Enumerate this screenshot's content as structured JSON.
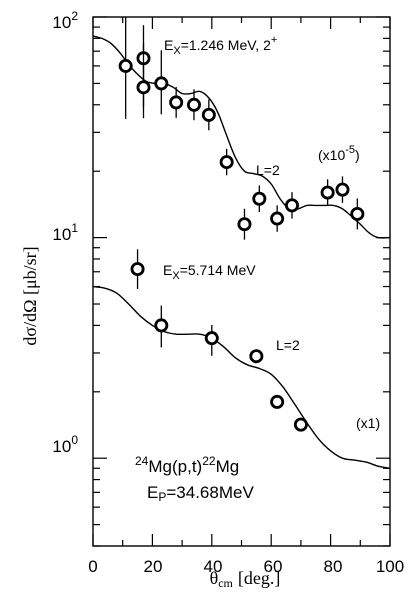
{
  "chart_data": {
    "type": "scatter",
    "xlabel_main": "θ",
    "xlabel_sub": "cm",
    "xlabel_unit": "[deg.]",
    "ylabel": "dσ/dΩ [μb/sr]",
    "xlim": [
      0,
      100
    ],
    "ylim": [
      0.4,
      100
    ],
    "yscale": "log",
    "x_ticks": [
      "0",
      "20",
      "40",
      "60",
      "80",
      "100"
    ],
    "y_ticks": [
      {
        "base": "10",
        "exp": "0",
        "value": 1
      },
      {
        "base": "10",
        "exp": "1",
        "value": 10
      },
      {
        "base": "10",
        "exp": "2",
        "value": 100
      }
    ],
    "series": [
      {
        "level": "Ex=1.246 MeV, 2+",
        "scale": "(x10-5)",
        "x": [
          11,
          17,
          17,
          23,
          28,
          34,
          39,
          45,
          51,
          56,
          62,
          67,
          79,
          84,
          89
        ],
        "y": [
          60,
          65,
          48,
          50,
          41,
          40,
          36,
          22,
          11.5,
          15,
          12.2,
          14,
          16,
          16.5,
          12.8
        ],
        "yerr_low": [
          0.24,
          0.22,
          0.14,
          0.14,
          0.07,
          0.07,
          0.07,
          0.06,
          0.07,
          0.06,
          0.06,
          0.06,
          0.06,
          0.06,
          0.07
        ],
        "yerr_high": [
          0.22,
          0.15,
          0.2,
          0.15,
          0.07,
          0.07,
          0.07,
          0.06,
          0.07,
          0.06,
          0.06,
          0.06,
          0.06,
          0.06,
          0.07
        ],
        "fit": {
          "label": "L=2",
          "x": [
            0,
            3,
            6,
            9,
            12,
            15,
            18,
            21,
            24,
            27,
            30,
            33,
            36,
            39,
            42,
            45,
            48,
            51,
            54,
            57,
            60,
            63,
            66,
            69,
            72,
            75,
            78,
            81,
            84,
            87,
            90,
            93,
            96,
            100
          ],
          "y": [
            82,
            80,
            76,
            69,
            61,
            55,
            51,
            50,
            50,
            48,
            45,
            45,
            46,
            43,
            37,
            29,
            23,
            20,
            19.5,
            19,
            17.5,
            15,
            13.5,
            13.5,
            14,
            14,
            14,
            14,
            13.5,
            12.5,
            11.5,
            10.5,
            10,
            10
          ]
        }
      },
      {
        "level": "Ex=5.714 MeV",
        "scale": "(x1)",
        "x": [
          15,
          23,
          40,
          55,
          62,
          70
        ],
        "y": [
          7.2,
          4.0,
          3.5,
          2.9,
          1.8,
          1.42
        ],
        "yerr_low": [
          0.09,
          0.1,
          0.08,
          0.03,
          0.03,
          0.03
        ],
        "yerr_high": [
          0.09,
          0.09,
          0.06,
          0.03,
          0.03,
          0.03
        ],
        "fit": {
          "label": "L=2",
          "x": [
            0,
            4,
            8,
            12,
            16,
            20,
            24,
            28,
            32,
            36,
            40,
            44,
            48,
            52,
            56,
            60,
            64,
            68,
            72,
            76,
            80,
            84,
            88,
            92,
            96,
            100
          ],
          "y": [
            6.0,
            5.9,
            5.6,
            5.0,
            4.4,
            4.0,
            3.75,
            3.65,
            3.65,
            3.65,
            3.5,
            3.2,
            2.85,
            2.65,
            2.55,
            2.4,
            2.1,
            1.75,
            1.45,
            1.22,
            1.08,
            1.0,
            0.98,
            0.96,
            0.92,
            0.9
          ]
        }
      }
    ],
    "annotations": {
      "upper_level": {
        "pre": "E",
        "sub": "X",
        "post": "=1.246 MeV, 2",
        "sup": "+"
      },
      "upper_fit_label": "L=2",
      "upper_scale": {
        "pre": "(x10",
        "sup": "-5",
        "post": ")"
      },
      "lower_level": {
        "pre": "E",
        "sub": "X",
        "post": "=5.714 MeV"
      },
      "lower_fit_label": "L=2",
      "lower_scale": "(x1)",
      "reaction": {
        "sup1": "24",
        "t1": "Mg(p,t)",
        "sup2": "22",
        "t2": "Mg"
      },
      "beam": {
        "pre": "E",
        "sub": "P",
        "post": "=34.68MeV"
      }
    }
  }
}
